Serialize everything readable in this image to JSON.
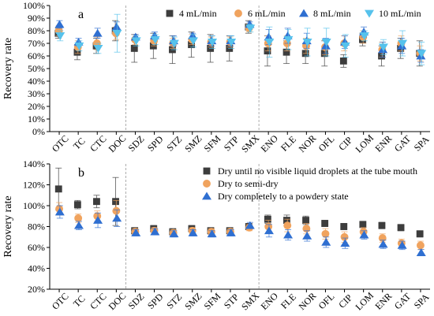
{
  "chart_data": [
    {
      "type": "scatter",
      "panel_label": "a",
      "ylabel": "Recovery rate",
      "ylim": [
        0,
        100
      ],
      "ytick_values": [
        0,
        10,
        20,
        30,
        40,
        50,
        60,
        70,
        80,
        90,
        100
      ],
      "ytick_labels": [
        "0%",
        "10%",
        "20%",
        "30%",
        "40%",
        "50%",
        "60%",
        "70%",
        "80%",
        "90%",
        "100%"
      ],
      "categories": [
        "OTC",
        "TC",
        "CTC",
        "DOC",
        "SDZ",
        "SPD",
        "STZ",
        "SMZ",
        "SFM",
        "STP",
        "SMX",
        "ENO",
        "FLE",
        "NOR",
        "OFL",
        "CIP",
        "LOM",
        "ENR",
        "GAT",
        "SPA"
      ],
      "group_dividers_after": [
        "DOC",
        "SMX"
      ],
      "grid": false,
      "legend_position": "top",
      "series": [
        {
          "name": "4 mL/min",
          "marker": "square",
          "color": "#3d3d3d",
          "values": [
            78,
            63,
            68,
            80,
            66,
            68,
            65,
            69,
            66,
            66,
            83,
            64,
            63,
            62,
            62,
            56,
            73,
            60,
            66,
            62
          ],
          "errors": [
            4,
            6,
            6,
            8,
            11,
            10,
            11,
            10,
            11,
            10,
            5,
            12,
            9,
            8,
            10,
            5,
            5,
            8,
            8,
            10
          ]
        },
        {
          "name": "6 mL/min",
          "marker": "circle",
          "color": "#f0a35e",
          "values": [
            80,
            67,
            70,
            78,
            73,
            72,
            70,
            73,
            71,
            71,
            82,
            70,
            70,
            68,
            67,
            70,
            75,
            65,
            70,
            62
          ],
          "errors": [
            4,
            5,
            5,
            5,
            4,
            4,
            4,
            4,
            4,
            4,
            3,
            6,
            6,
            6,
            6,
            6,
            5,
            6,
            6,
            6
          ]
        },
        {
          "name": "8 mL/min",
          "marker": "triangle-up",
          "color": "#2f6fd1",
          "values": [
            85,
            71,
            78,
            83,
            75,
            76,
            72,
            76,
            72,
            72,
            85,
            75,
            76,
            72,
            68,
            71,
            79,
            65,
            68,
            60
          ],
          "errors": [
            3,
            3,
            4,
            4,
            2,
            3,
            4,
            2,
            4,
            4,
            2,
            6,
            6,
            6,
            6,
            5,
            4,
            6,
            6,
            5
          ]
        },
        {
          "name": "10 mL/min",
          "marker": "triangle-down",
          "color": "#56c2ec",
          "values": [
            76,
            68,
            66,
            78,
            72,
            73,
            70,
            72,
            71,
            71,
            82,
            71,
            73,
            71,
            71,
            68,
            76,
            67,
            70,
            62
          ],
          "errors": [
            4,
            4,
            4,
            15,
            4,
            4,
            5,
            5,
            5,
            5,
            3,
            12,
            8,
            11,
            11,
            9,
            4,
            6,
            10,
            9
          ]
        }
      ]
    },
    {
      "type": "scatter",
      "panel_label": "b",
      "ylabel": "Recovery rate",
      "ylim": [
        20,
        140
      ],
      "ytick_values": [
        20,
        40,
        60,
        80,
        100,
        120,
        140
      ],
      "ytick_labels": [
        "20%",
        "40%",
        "60%",
        "80%",
        "100%",
        "120%",
        "140%"
      ],
      "categories": [
        "OTC",
        "TC",
        "CTC",
        "DOC",
        "SDZ",
        "SPD",
        "STZ",
        "SMZ",
        "SFM",
        "STP",
        "SMX",
        "ENO",
        "FLE",
        "NOR",
        "OFL",
        "CIP",
        "LOM",
        "ENR",
        "GAT",
        "SPA"
      ],
      "group_dividers_after": [
        "DOC",
        "SMX"
      ],
      "grid": false,
      "legend_position": "top-right",
      "series": [
        {
          "name": "Dry until no visible liquid droplets at the tube mouth",
          "marker": "square",
          "color": "#3d3d3d",
          "values": [
            116,
            101,
            104,
            104,
            76,
            78,
            75,
            78,
            76,
            76,
            80,
            87,
            86,
            86,
            83,
            80,
            82,
            81,
            79,
            73
          ],
          "errors": [
            20,
            4,
            6,
            23,
            3,
            3,
            3,
            3,
            3,
            3,
            3,
            4,
            5,
            4,
            3,
            3,
            3,
            3,
            3,
            3
          ]
        },
        {
          "name": "Dry to semi-dry",
          "marker": "circle",
          "color": "#f0a35e",
          "values": [
            97,
            88,
            90,
            95,
            75,
            76,
            74,
            76,
            75,
            75,
            79,
            80,
            81,
            78,
            73,
            70,
            75,
            69,
            64,
            62
          ],
          "errors": [
            6,
            4,
            5,
            10,
            3,
            3,
            3,
            3,
            3,
            3,
            3,
            6,
            6,
            5,
            5,
            5,
            4,
            4,
            4,
            4
          ]
        },
        {
          "name": "Dry completely to a powdery state",
          "marker": "triangle-up",
          "color": "#2f6fd1",
          "values": [
            94,
            81,
            86,
            88,
            74,
            75,
            73,
            74,
            73,
            74,
            81,
            76,
            72,
            71,
            65,
            64,
            72,
            63,
            62,
            55
          ],
          "errors": [
            6,
            4,
            7,
            8,
            3,
            3,
            3,
            3,
            3,
            3,
            3,
            6,
            5,
            5,
            5,
            5,
            4,
            4,
            4,
            3
          ]
        }
      ]
    }
  ]
}
